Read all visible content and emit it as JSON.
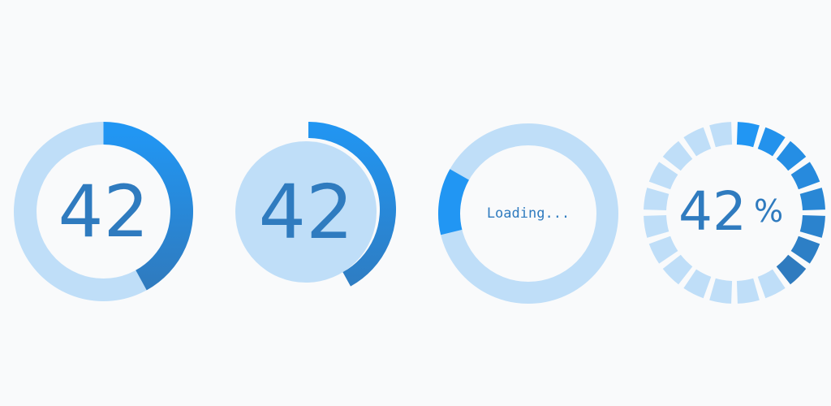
{
  "widgets": [
    {
      "id": "ring-progress",
      "value_label": "42",
      "progress": 0.42
    },
    {
      "id": "disc-progress",
      "value_label": "42",
      "progress": 0.42
    },
    {
      "id": "loading-spinner",
      "status_label": "Loading...",
      "arc_fraction": 0.12
    },
    {
      "id": "segmented-progress",
      "value_label": "42",
      "unit_label": "%",
      "progress": 0.42,
      "segments": 20
    }
  ],
  "colors": {
    "track": "#bfdef8",
    "progress_start": "#2196f3",
    "progress_end": "#2f7bbf",
    "text": "#2f7bbf",
    "background": "#f9fafb"
  }
}
